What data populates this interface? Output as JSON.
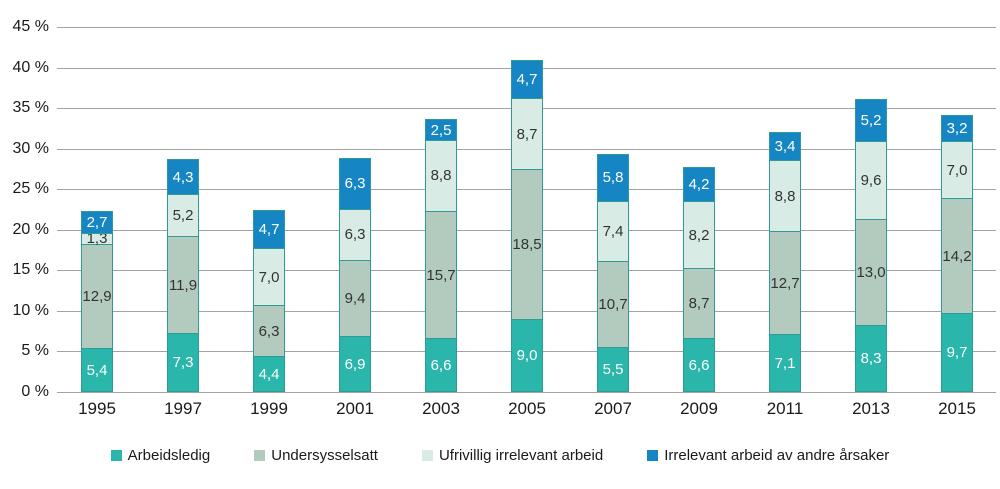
{
  "chart_data": {
    "type": "bar",
    "stacked": true,
    "title": "",
    "categories": [
      "1995",
      "1997",
      "1999",
      "2001",
      "2003",
      "2005",
      "2007",
      "2009",
      "2011",
      "2013",
      "2015"
    ],
    "series": [
      {
        "name": "Arbeidsledig",
        "color": "#2bb6ab",
        "label_color": "#ffffff",
        "values": [
          5.4,
          7.3,
          4.4,
          6.9,
          6.6,
          9.0,
          5.5,
          6.6,
          7.1,
          8.3,
          9.7
        ],
        "labels": [
          "5,4",
          "7,3",
          "4,4",
          "6,9",
          "6,6",
          "9,0",
          "5,5",
          "6,6",
          "7,1",
          "8,3",
          "9,7"
        ]
      },
      {
        "name": "Undersysselsatt",
        "color": "#b3cbbe",
        "label_color": "#333333",
        "values": [
          12.9,
          11.9,
          6.3,
          9.4,
          15.7,
          18.5,
          10.7,
          8.7,
          12.7,
          13.0,
          14.2
        ],
        "labels": [
          "12,9",
          "11,9",
          "6,3",
          "9,4",
          "15,7",
          "18,5",
          "10,7",
          "8,7",
          "12,7",
          "13,0",
          "14,2"
        ]
      },
      {
        "name": "Ufrivillig irrelevant arbeid",
        "color": "#d8ece5",
        "label_color": "#333333",
        "values": [
          1.3,
          5.2,
          7.0,
          6.3,
          8.8,
          8.7,
          7.4,
          8.2,
          8.8,
          9.6,
          7.0
        ],
        "labels": [
          "1,3",
          "5,2",
          "7,0",
          "6,3",
          "8,8",
          "8,7",
          "7,4",
          "8,2",
          "8,8",
          "9,6",
          "7,0"
        ]
      },
      {
        "name": "Irrelevant arbeid av andre årsaker",
        "color": "#1586c3",
        "label_color": "#ffffff",
        "values": [
          2.7,
          4.3,
          4.7,
          6.3,
          2.5,
          4.7,
          5.8,
          4.2,
          3.4,
          5.2,
          3.2
        ],
        "labels": [
          "2,7",
          "4,3",
          "4,7",
          "6,3",
          "2,5",
          "4,7",
          "5,8",
          "4,2",
          "3,4",
          "5,2",
          "3,2"
        ]
      }
    ],
    "y_axis": {
      "ticks": [
        0,
        5,
        10,
        15,
        20,
        25,
        30,
        35,
        40,
        45
      ],
      "tick_suffix": " %",
      "ylim": [
        0,
        45
      ]
    },
    "grid": true,
    "legend_position": "bottom",
    "decimal_separator": ",",
    "style_colors": {
      "gridline": "#a3a3a3",
      "segment_border": "#2e9b94",
      "axis_text": "#1a1a1a"
    }
  }
}
